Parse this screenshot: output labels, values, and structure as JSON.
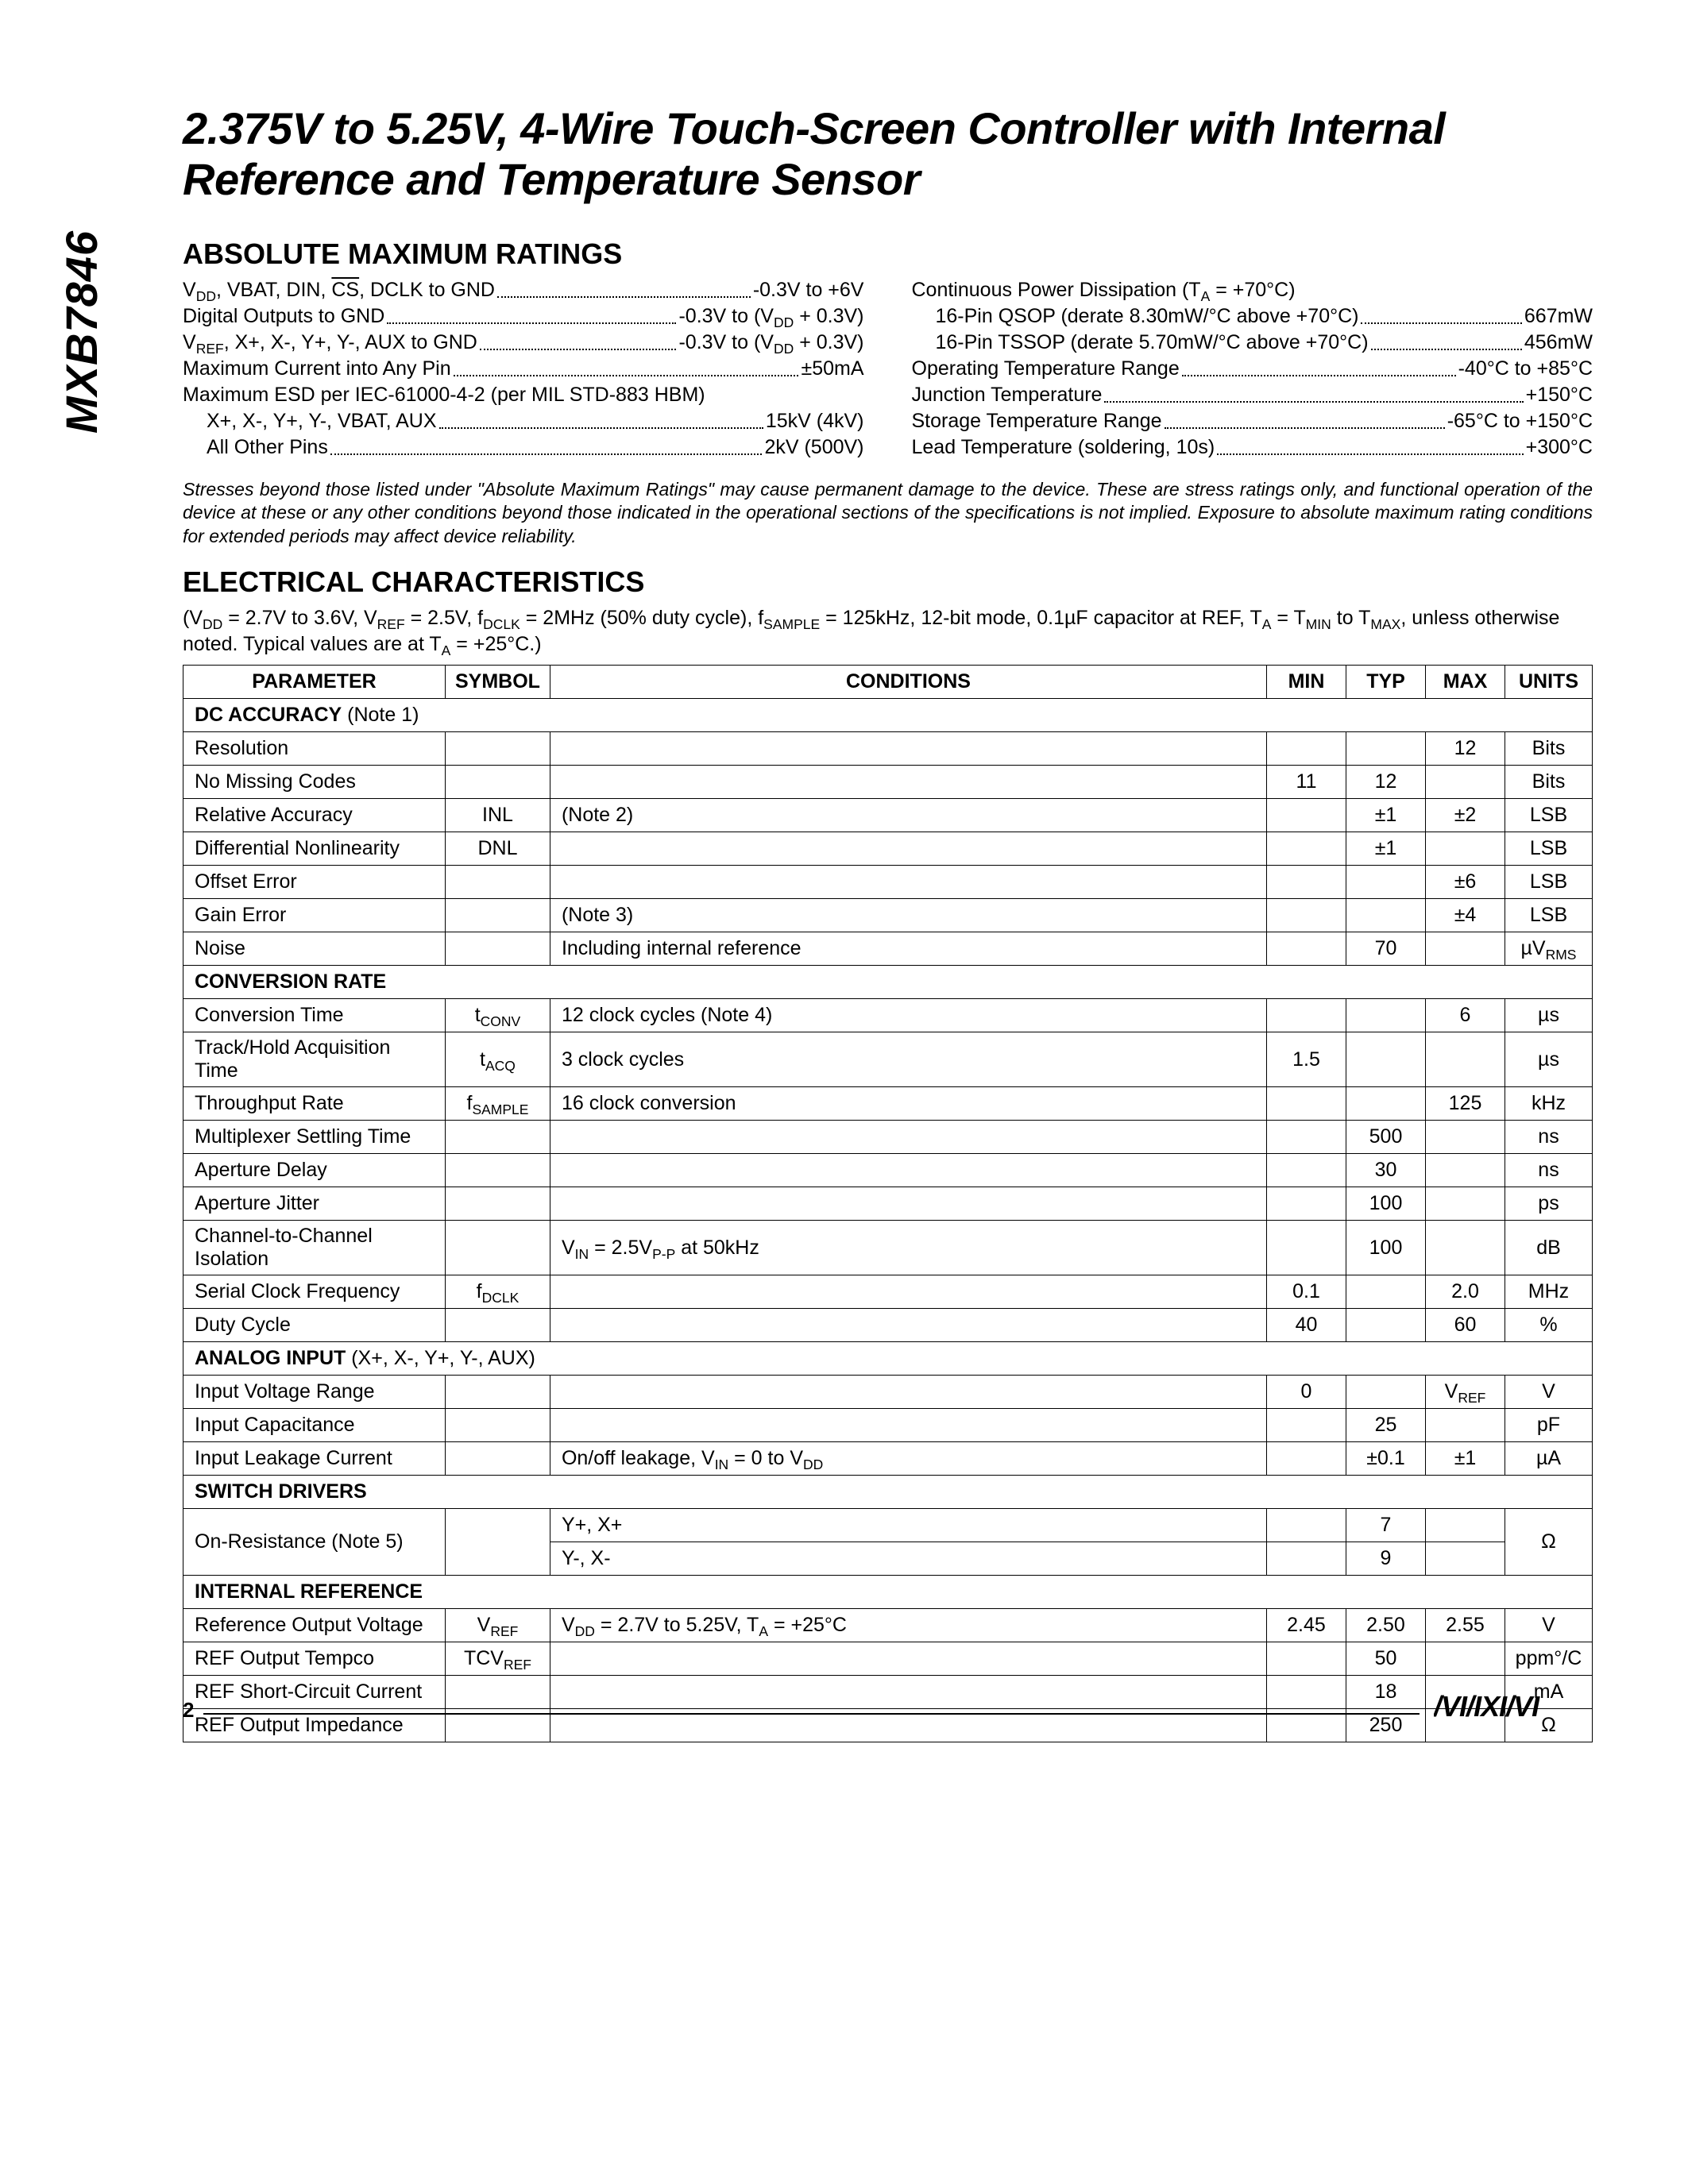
{
  "part_number": "MXB7846",
  "title": "2.375V to 5.25V, 4-Wire Touch-Screen Controller with Internal Reference and Temperature Sensor",
  "abs_max": {
    "heading": "ABSOLUTE MAXIMUM RATINGS",
    "left": [
      {
        "label": "V<sub>DD</sub>, VBAT, DIN, <span class=\"overline\">CS</span>, DCLK to GND",
        "value": "-0.3V to +6V"
      },
      {
        "label": "Digital Outputs to GND",
        "value": "-0.3V to (V<sub>DD</sub> + 0.3V)"
      },
      {
        "label": "V<sub>REF</sub>, X+, X-, Y+, Y-, AUX to GND",
        "value": "-0.3V to (V<sub>DD</sub> + 0.3V)"
      },
      {
        "label": "Maximum Current into Any Pin",
        "value": "±50mA"
      },
      {
        "label": "Maximum ESD per IEC-61000-4-2 (per MIL STD-883 HBM)",
        "value": "",
        "nodots": true
      },
      {
        "label": "X+, X-, Y+, Y-, VBAT, AUX",
        "value": "15kV (4kV)",
        "indent": true
      },
      {
        "label": "All Other Pins",
        "value": "2kV (500V)",
        "indent": true
      }
    ],
    "right": [
      {
        "label": "Continuous Power Dissipation (T<sub>A</sub> = +70°C)",
        "value": "",
        "nodots": true
      },
      {
        "label": "16-Pin QSOP (derate 8.30mW/°C above +70°C)",
        "value": "667mW",
        "indent": true
      },
      {
        "label": "16-Pin TSSOP (derate 5.70mW/°C above +70°C)",
        "value": "456mW",
        "indent": true
      },
      {
        "label": "Operating Temperature Range",
        "value": "-40°C to +85°C"
      },
      {
        "label": "Junction Temperature",
        "value": "+150°C"
      },
      {
        "label": "Storage Temperature Range",
        "value": "-65°C to +150°C"
      },
      {
        "label": "Lead Temperature (soldering, 10s)",
        "value": "+300°C"
      }
    ]
  },
  "stress_note": "Stresses beyond those listed under \"Absolute Maximum Ratings\" may cause permanent damage to the device. These are stress ratings only, and functional operation of the device at these or any other conditions beyond those indicated in the operational sections of the specifications is not implied. Exposure to absolute maximum rating conditions for extended periods may affect device reliability.",
  "ec": {
    "heading": "ELECTRICAL CHARACTERISTICS",
    "conditions": "(V<sub>DD</sub> = 2.7V to 3.6V, V<sub>REF</sub> = 2.5V, f<sub>DCLK</sub> = 2MHz (50% duty cycle), f<sub>SAMPLE</sub> = 125kHz, 12-bit mode, 0.1µF capacitor at REF, T<sub>A</sub> = T<sub>MIN</sub> to T<sub>MAX</sub>, unless otherwise noted. Typical values are at T<sub>A</sub> = +25°C.)",
    "headers": [
      "PARAMETER",
      "SYMBOL",
      "CONDITIONS",
      "MIN",
      "TYP",
      "MAX",
      "UNITS"
    ],
    "rows": [
      {
        "section": "DC ACCURACY (Note 1)"
      },
      {
        "param": "Resolution",
        "sym": "",
        "cond": "",
        "min": "",
        "typ": "",
        "max": "12",
        "units": "Bits"
      },
      {
        "param": "No Missing Codes",
        "sym": "",
        "cond": "",
        "min": "11",
        "typ": "12",
        "max": "",
        "units": "Bits"
      },
      {
        "param": "Relative Accuracy",
        "sym": "INL",
        "cond": "(Note 2)",
        "min": "",
        "typ": "±1",
        "max": "±2",
        "units": "LSB"
      },
      {
        "param": "Differential Nonlinearity",
        "sym": "DNL",
        "cond": "",
        "min": "",
        "typ": "±1",
        "max": "",
        "units": "LSB"
      },
      {
        "param": "Offset Error",
        "sym": "",
        "cond": "",
        "min": "",
        "typ": "",
        "max": "±6",
        "units": "LSB"
      },
      {
        "param": "Gain Error",
        "sym": "",
        "cond": "(Note 3)",
        "min": "",
        "typ": "",
        "max": "±4",
        "units": "LSB"
      },
      {
        "param": "Noise",
        "sym": "",
        "cond": "Including internal reference",
        "min": "",
        "typ": "70",
        "max": "",
        "units": "µV<sub>RMS</sub>"
      },
      {
        "section": "CONVERSION RATE"
      },
      {
        "param": "Conversion Time",
        "sym": "t<sub>CONV</sub>",
        "cond": "12 clock cycles (Note 4)",
        "min": "",
        "typ": "",
        "max": "6",
        "units": "µs"
      },
      {
        "param": "Track/Hold Acquisition Time",
        "sym": "t<sub>ACQ</sub>",
        "cond": "3 clock cycles",
        "min": "1.5",
        "typ": "",
        "max": "",
        "units": "µs"
      },
      {
        "param": "Throughput Rate",
        "sym": "f<sub>SAMPLE</sub>",
        "cond": "16 clock conversion",
        "min": "",
        "typ": "",
        "max": "125",
        "units": "kHz"
      },
      {
        "param": "Multiplexer Settling Time",
        "sym": "",
        "cond": "",
        "min": "",
        "typ": "500",
        "max": "",
        "units": "ns"
      },
      {
        "param": "Aperture Delay",
        "sym": "",
        "cond": "",
        "min": "",
        "typ": "30",
        "max": "",
        "units": "ns"
      },
      {
        "param": "Aperture Jitter",
        "sym": "",
        "cond": "",
        "min": "",
        "typ": "100",
        "max": "",
        "units": "ps"
      },
      {
        "param": "Channel-to-Channel Isolation",
        "sym": "",
        "cond": "V<sub>IN</sub> = 2.5V<sub>P-P</sub> at 50kHz",
        "min": "",
        "typ": "100",
        "max": "",
        "units": "dB"
      },
      {
        "param": "Serial Clock Frequency",
        "sym": "f<sub>DCLK</sub>",
        "cond": "",
        "min": "0.1",
        "typ": "",
        "max": "2.0",
        "units": "MHz"
      },
      {
        "param": "Duty Cycle",
        "sym": "",
        "cond": "",
        "min": "40",
        "typ": "",
        "max": "60",
        "units": "%"
      },
      {
        "section": "ANALOG INPUT (X+, X-, Y+, Y-, AUX)"
      },
      {
        "param": "Input Voltage Range",
        "sym": "",
        "cond": "",
        "min": "0",
        "typ": "",
        "max": "V<sub>REF</sub>",
        "units": "V"
      },
      {
        "param": "Input Capacitance",
        "sym": "",
        "cond": "",
        "min": "",
        "typ": "25",
        "max": "",
        "units": "pF"
      },
      {
        "param": "Input Leakage Current",
        "sym": "",
        "cond": "On/off leakage, V<sub>IN</sub> = 0 to V<sub>DD</sub>",
        "min": "",
        "typ": "±0.1",
        "max": "±1",
        "units": "µA"
      },
      {
        "section": "SWITCH DRIVERS"
      },
      {
        "param": "On-Resistance (Note 5)",
        "sym": "",
        "rowspan": 2,
        "cond": "Y+, X+",
        "min": "",
        "typ": "7",
        "max": "",
        "units": "Ω",
        "unitsrowspan": 2
      },
      {
        "cond": "Y-, X-",
        "min": "",
        "typ": "9",
        "max": "",
        "subrow": true
      },
      {
        "section": "INTERNAL REFERENCE"
      },
      {
        "param": "Reference Output Voltage",
        "sym": "V<sub>REF</sub>",
        "cond": "V<sub>DD</sub> = 2.7V to 5.25V, T<sub>A</sub> = +25°C",
        "min": "2.45",
        "typ": "2.50",
        "max": "2.55",
        "units": "V"
      },
      {
        "param": "REF Output Tempco",
        "sym": "TCV<sub>REF</sub>",
        "cond": "",
        "min": "",
        "typ": "50",
        "max": "",
        "units": "ppm°/C"
      },
      {
        "param": "REF Short-Circuit Current",
        "sym": "",
        "cond": "",
        "min": "",
        "typ": "18",
        "max": "",
        "units": "mA"
      },
      {
        "param": "REF Output Impedance",
        "sym": "",
        "cond": "",
        "min": "",
        "typ": "250",
        "max": "",
        "units": "Ω"
      }
    ]
  },
  "footer": {
    "page": "2",
    "logo_text": "MAXIM"
  }
}
